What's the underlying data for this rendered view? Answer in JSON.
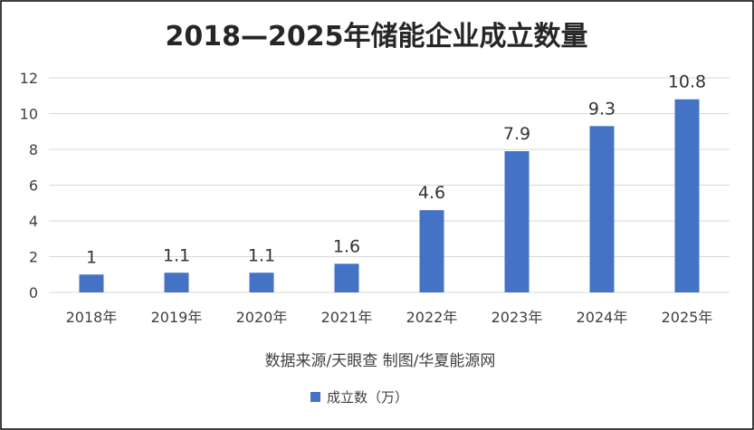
{
  "chart_data": {
    "type": "bar",
    "title": "2018—2025年储能企业成立数量",
    "categories": [
      "2018年",
      "2019年",
      "2020年",
      "2021年",
      "2022年",
      "2023年",
      "2024年",
      "2025年"
    ],
    "series": [
      {
        "name": "成立数（万）",
        "values": [
          1,
          1.1,
          1.1,
          1.6,
          4.6,
          7.9,
          9.3,
          10.8
        ],
        "color": "#4472C4"
      }
    ],
    "data_labels": [
      "1",
      "1.1",
      "1.1",
      "1.6",
      "4.6",
      "7.9",
      "9.3",
      "10.8"
    ],
    "yticks": [
      0,
      2,
      4,
      6,
      8,
      10,
      12
    ],
    "ylim": [
      0,
      12
    ],
    "grid": true,
    "legend_position": "bottom",
    "source_note": "数据来源/天眼查  制图/华夏能源网",
    "border_color": "#000000",
    "grid_color": "#d9d9d9"
  }
}
